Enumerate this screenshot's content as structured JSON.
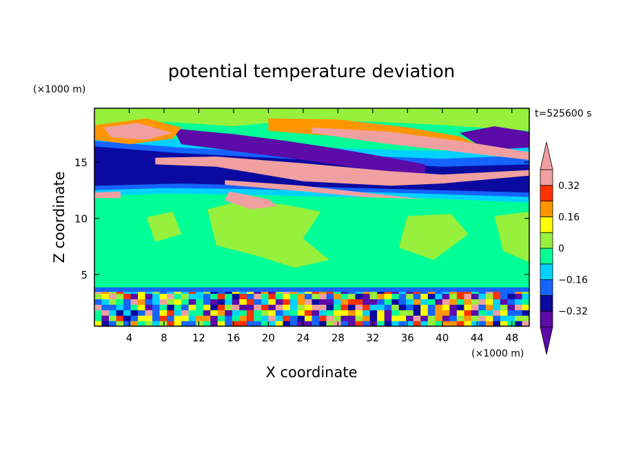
{
  "chart_data": {
    "type": "heatmap",
    "title": "potential temperature deviation",
    "xlabel": "X coordinate",
    "ylabel": "Z coordinate",
    "x_unit": "(×1000 m)",
    "y_unit": "(×1000 m)",
    "time_label": "t=525600 s",
    "xlim": [
      0,
      50
    ],
    "ylim": [
      0.4,
      19.8
    ],
    "x_ticks": [
      4,
      8,
      12,
      16,
      20,
      24,
      28,
      32,
      36,
      40,
      44,
      48
    ],
    "y_ticks": [
      5,
      10,
      15
    ],
    "colorbar": {
      "levels": [
        -0.4,
        -0.32,
        -0.24,
        -0.16,
        -0.08,
        0,
        0.08,
        0.16,
        0.24,
        0.32,
        0.4
      ],
      "tick_labels": [
        "0.32",
        "0.16",
        "0",
        "−0.16",
        "−0.32"
      ],
      "tick_values": [
        0.32,
        0.16,
        0,
        -0.16,
        -0.32
      ],
      "colors": [
        "#5c0aa8",
        "#0a0aa0",
        "#1464ff",
        "#00d2ff",
        "#00ff96",
        "#96f03c",
        "#ffff00",
        "#ff9600",
        "#ff3200",
        "#f0a0a0"
      ],
      "over_color": "#f0a0a0",
      "under_color": "#5c0aa8"
    },
    "colors": {
      "background": "#00ff96",
      "weak_positive": "#96f03c",
      "strong_positive": "#f0a0a0",
      "strong_negative": "#5c0aa8",
      "negative": "#0a0aa0",
      "moderate_negative": "#1464ff",
      "weak_negative": "#00d2ff",
      "orange": "#ff9600",
      "red": "#ff3200",
      "yellow": "#ffff00"
    },
    "grid": false
  }
}
